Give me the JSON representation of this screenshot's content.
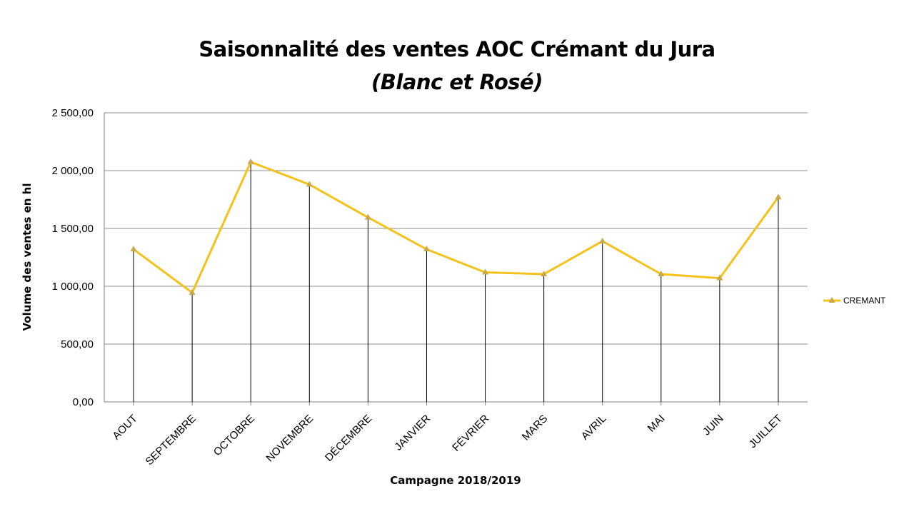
{
  "chart_data": {
    "type": "line",
    "title": "Saisonnalité des ventes AOC Crémant du Jura",
    "subtitle": "(Blanc et Rosé)",
    "xlabel": "Campagne  2018/2019",
    "ylabel": "Volume des ventes en hl",
    "categories": [
      "AOUT",
      "SEPTEMBRE",
      "OCTOBRE",
      "NOVEMBRE",
      "DÉCEMBRE",
      "JANVIER",
      "FÉVRIER",
      "MARS",
      "AVRIL",
      "MAI",
      "JUIN",
      "JUILLET"
    ],
    "series": [
      {
        "name": "CREMANT",
        "color": "#f5c21b",
        "values": [
          1320,
          945,
          2075,
          1880,
          1595,
          1320,
          1120,
          1105,
          1390,
          1105,
          1070,
          1770
        ]
      }
    ],
    "ylim": [
      0,
      2500
    ],
    "yticks": [
      "0,00",
      "500,00",
      "1 000,00",
      "1 500,00",
      "2 000,00",
      "2 500,00"
    ],
    "grid": true,
    "drop_lines": true,
    "legend_position": "right"
  }
}
